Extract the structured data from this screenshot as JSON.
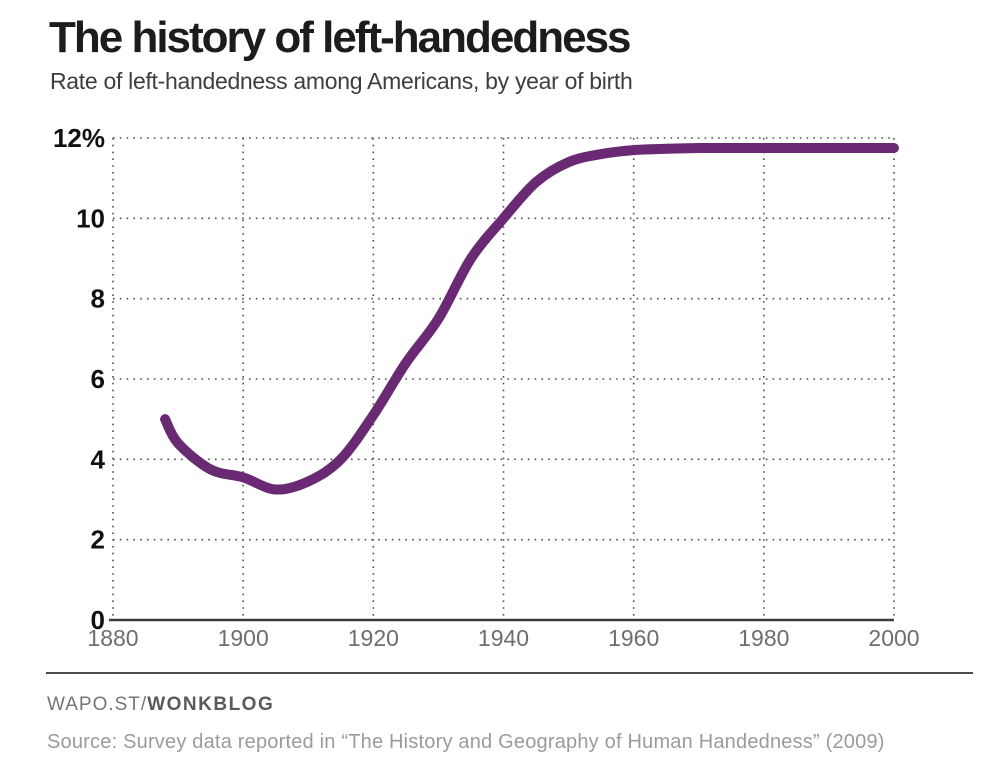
{
  "header": {
    "title": "The history of left-handedness",
    "subtitle": "Rate of left-handedness among Americans, by year of birth"
  },
  "chart_data": {
    "type": "line",
    "title": "The history of left-handedness",
    "subtitle": "Rate of left-handedness among Americans, by year of birth",
    "x": [
      1888,
      1890,
      1895,
      1900,
      1905,
      1910,
      1915,
      1920,
      1925,
      1930,
      1935,
      1940,
      1945,
      1950,
      1955,
      1960,
      1965,
      1970,
      1975,
      1980,
      1985,
      1990,
      1995,
      2000
    ],
    "series": [
      {
        "name": "Rate of left-handedness (%)",
        "color": "#6a2a73",
        "values": [
          5.0,
          4.4,
          3.75,
          3.55,
          3.25,
          3.45,
          4.0,
          5.1,
          6.4,
          7.5,
          9.0,
          10.0,
          10.9,
          11.4,
          11.6,
          11.7,
          11.73,
          11.75,
          11.75,
          11.75,
          11.75,
          11.75,
          11.75,
          11.75
        ]
      }
    ],
    "xlim": [
      1880,
      2000
    ],
    "ylim": [
      0,
      12
    ],
    "x_ticks": [
      1880,
      1900,
      1920,
      1940,
      1960,
      1980,
      2000
    ],
    "x_tick_labels": [
      "1880",
      "1900",
      "1920",
      "1940",
      "1960",
      "1980",
      "2000"
    ],
    "y_ticks": [
      0,
      2,
      4,
      6,
      8,
      10,
      12
    ],
    "y_tick_labels": [
      "0",
      "2",
      "4",
      "6",
      "8",
      "10",
      "12%"
    ],
    "grid": "dotted",
    "legend": "none",
    "line_width": 10
  },
  "footer": {
    "brand_prefix": "WAPO.ST/",
    "brand_bold": "WONKBLOG",
    "source": "Source: Survey data reported in “The History and Geography of Human Handedness” (2009)"
  },
  "colors": {
    "line": "#6a2a73",
    "grid_dots": "#4d4d4d",
    "axis_line": "#3c3c3c",
    "x_tick_label": "#6e6e6e",
    "y_tick_label": "#111111",
    "title": "#1c1c1c",
    "subtitle": "#3e3e3e",
    "divider": "#4b4b4b",
    "brand_prefix": "#757575",
    "brand_bold": "#5a5a5a",
    "source": "#9b9b9b"
  }
}
